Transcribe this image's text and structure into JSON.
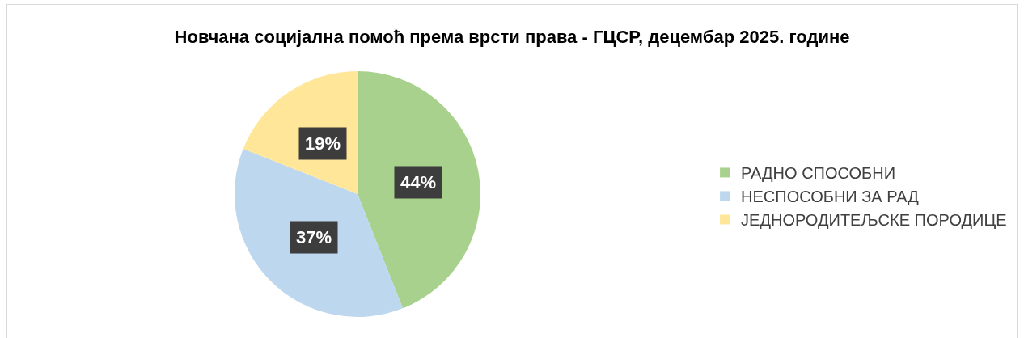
{
  "chart_data": {
    "type": "pie",
    "title": "Новчана социјална помоћ према врсти права - ГЦСР, децембар 2025. године",
    "categories": [
      "РАДНО СПОСОБНИ",
      "НЕСПОСОБНИ ЗА РАД",
      "ЈЕДНОРОДИТЕЉСКЕ ПОРОДИЦЕ"
    ],
    "values": [
      44,
      37,
      19
    ],
    "colors": [
      "#a9d18e",
      "#bdd7ee",
      "#ffe699"
    ],
    "value_labels": [
      "44%",
      "37%",
      "19%"
    ],
    "legend": "right"
  }
}
